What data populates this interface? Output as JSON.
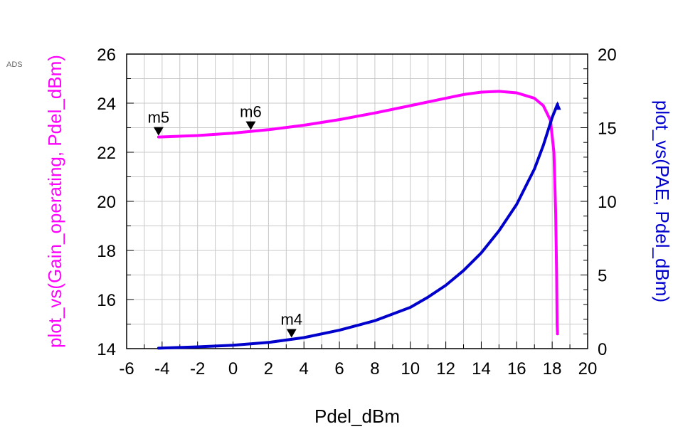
{
  "app_label": "ADS",
  "chart_data": {
    "type": "line",
    "xlabel": "Pdel_dBm",
    "ylabel_left": "plot_vs(Gain_operating, Pdel_dBm)",
    "ylabel_right": "plot_vs(PAE, Pdel_dBm)",
    "xlim": [
      -6,
      20
    ],
    "ylim_left": [
      14,
      26
    ],
    "ylim_right": [
      0,
      20
    ],
    "x_ticks": [
      -6,
      -4,
      -2,
      0,
      2,
      4,
      6,
      8,
      10,
      12,
      14,
      16,
      18,
      20
    ],
    "y_left_ticks": [
      14,
      16,
      18,
      20,
      22,
      24,
      26
    ],
    "y_right_ticks": [
      0,
      5,
      10,
      15,
      20
    ],
    "grid": true,
    "series": [
      {
        "name": "Gain_operating",
        "axis": "left",
        "color": "#ff00ff",
        "points": [
          [
            -4.2,
            22.62
          ],
          [
            -2,
            22.68
          ],
          [
            0,
            22.78
          ],
          [
            2,
            22.92
          ],
          [
            4,
            23.1
          ],
          [
            6,
            23.33
          ],
          [
            8,
            23.6
          ],
          [
            10,
            23.9
          ],
          [
            12,
            24.2
          ],
          [
            13,
            24.35
          ],
          [
            14,
            24.45
          ],
          [
            15,
            24.48
          ],
          [
            16,
            24.42
          ],
          [
            17,
            24.2
          ],
          [
            17.5,
            23.9
          ],
          [
            17.9,
            23.3
          ],
          [
            18.1,
            22.0
          ],
          [
            18.2,
            19.5
          ],
          [
            18.25,
            17.0
          ],
          [
            18.28,
            15.0
          ],
          [
            18.3,
            14.6
          ]
        ]
      },
      {
        "name": "PAE",
        "axis": "right",
        "color": "#0000cc",
        "points": [
          [
            -4.2,
            0.03
          ],
          [
            -2,
            0.12
          ],
          [
            0,
            0.23
          ],
          [
            2,
            0.42
          ],
          [
            4,
            0.75
          ],
          [
            6,
            1.25
          ],
          [
            8,
            1.9
          ],
          [
            10,
            2.8
          ],
          [
            11,
            3.5
          ],
          [
            12,
            4.3
          ],
          [
            13,
            5.3
          ],
          [
            14,
            6.5
          ],
          [
            15,
            8.0
          ],
          [
            16,
            9.8
          ],
          [
            17,
            12.2
          ],
          [
            17.5,
            13.8
          ],
          [
            18.0,
            15.7
          ],
          [
            18.3,
            16.6
          ]
        ]
      }
    ],
    "markers": [
      {
        "label": "m5",
        "series": "Gain_operating",
        "x": -4.2,
        "y": 22.62
      },
      {
        "label": "m6",
        "series": "Gain_operating",
        "x": 1.0,
        "y": 22.85
      },
      {
        "label": "m4",
        "series": "PAE",
        "x": 3.3,
        "y": 0.65
      }
    ]
  }
}
